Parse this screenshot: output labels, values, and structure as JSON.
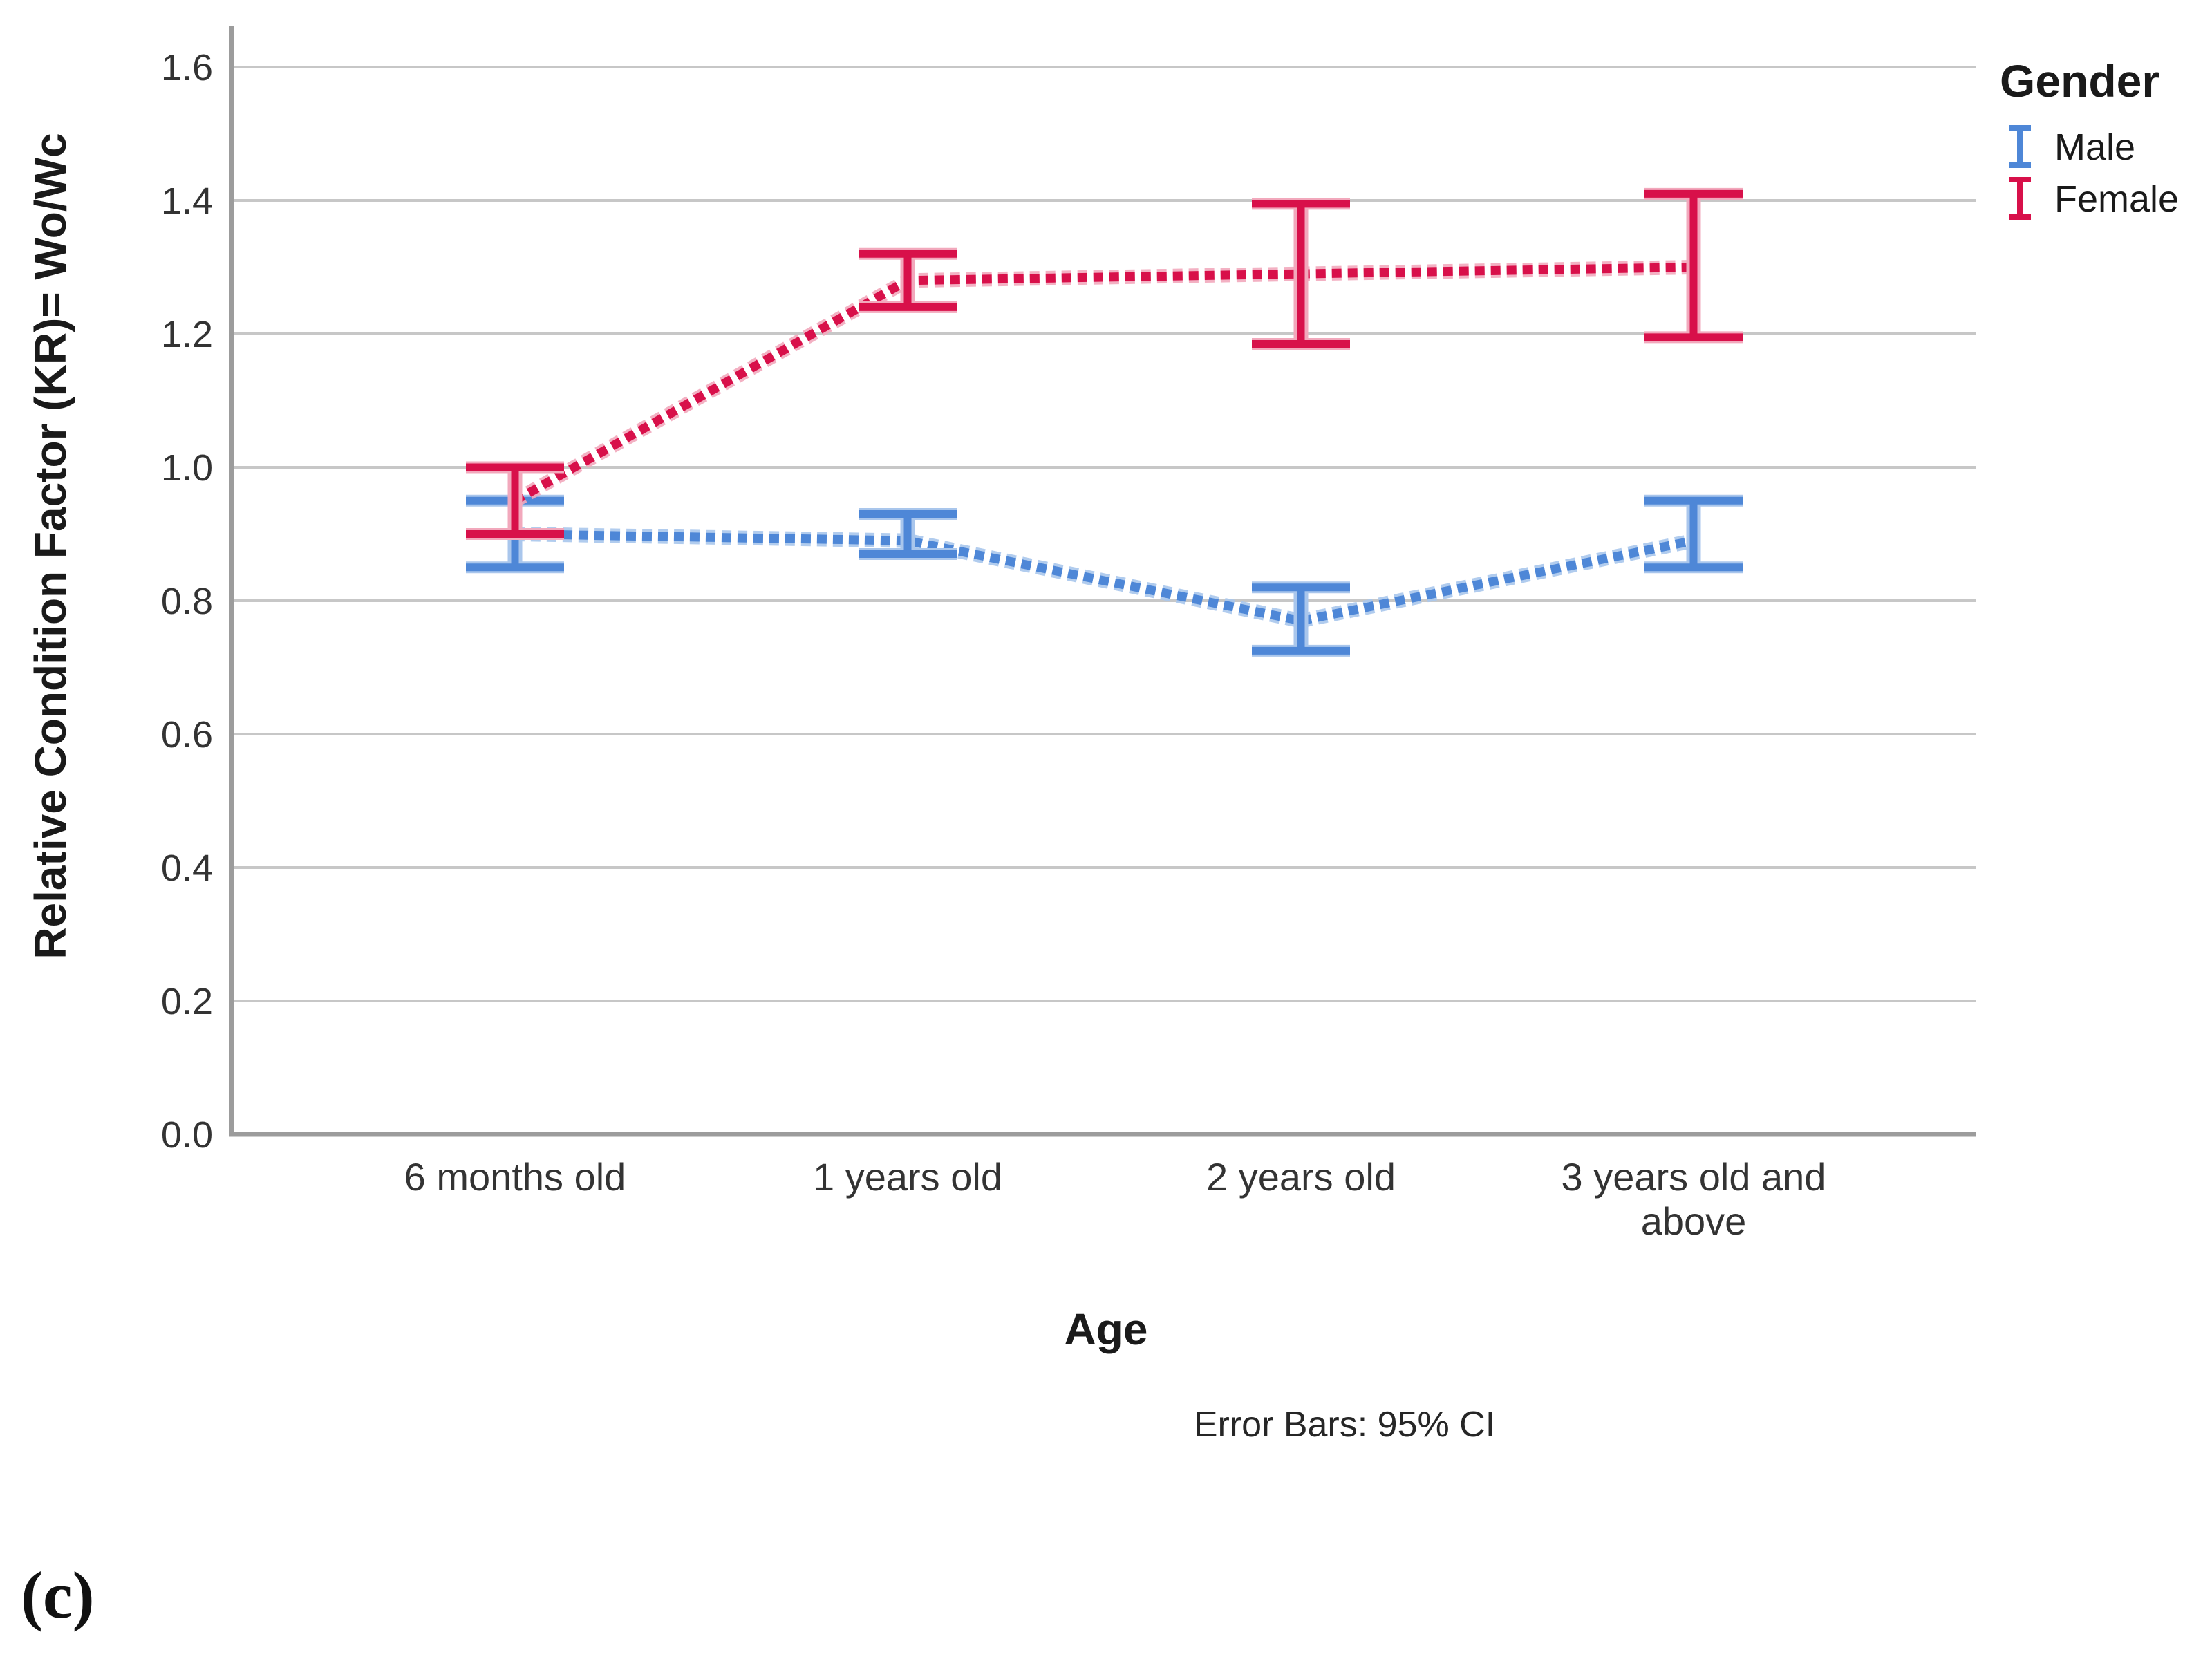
{
  "panel_label": "(c)",
  "chart_data": {
    "type": "line",
    "subtype": "error-bar-line-chart",
    "categories": [
      "6 months old",
      "1 years old",
      "2 years old",
      "3 years old and\nabove"
    ],
    "series": [
      {
        "name": "Male",
        "color": "#4e87d7",
        "color_light": "#a9c6ec",
        "values": [
          0.9,
          0.89,
          0.77,
          0.89
        ],
        "ci_low": [
          0.85,
          0.87,
          0.725,
          0.85
        ],
        "ci_high": [
          0.95,
          0.93,
          0.82,
          0.95
        ]
      },
      {
        "name": "Female",
        "color": "#d8104a",
        "color_light": "#f2a8bc",
        "values": [
          0.95,
          1.28,
          1.29,
          1.3
        ],
        "ci_low": [
          0.9,
          1.24,
          1.185,
          1.195
        ],
        "ci_high": [
          1.0,
          1.32,
          1.395,
          1.41
        ]
      }
    ],
    "title": "",
    "xlabel": "Age",
    "ylabel": "Relative Condition Factor (KR)= Wo/Wc",
    "ylim": [
      0.0,
      1.6
    ],
    "yticks": [
      0.0,
      0.2,
      0.4,
      0.6,
      0.8,
      1.0,
      1.2,
      1.4,
      1.6
    ],
    "ytick_format_decimals": 1,
    "grid": "horizontal",
    "legend_title": "Gender",
    "legend_position": "top-right-outside",
    "footnote": "Error Bars: 95% CI",
    "error_bars": "95% CI",
    "colors": {
      "gridline": "#c7c7c7",
      "axis": "#9c9c9c",
      "text": "#1a1a1a",
      "tick_text": "#333333"
    }
  }
}
